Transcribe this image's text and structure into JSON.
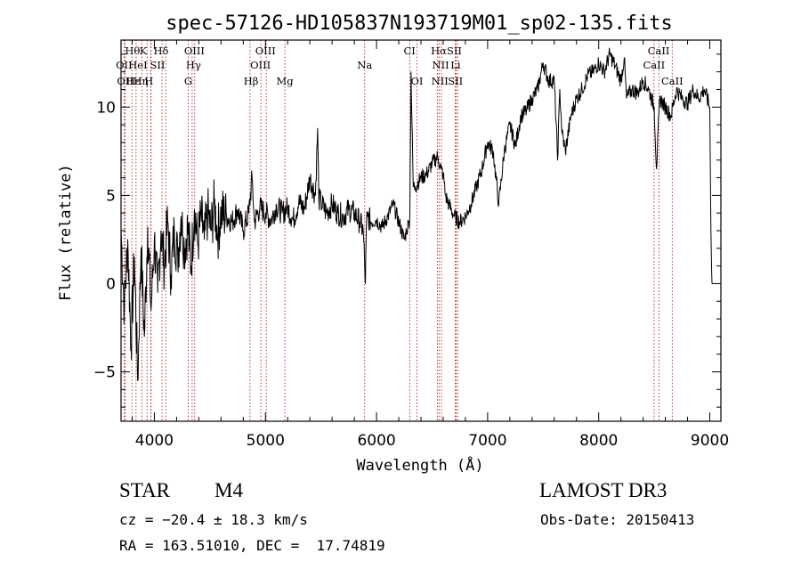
{
  "chart_data": {
    "type": "line",
    "title": "spec-57126-HD105837N193719M01_sp02-135.fits",
    "xlabel": "Wavelength (Å)",
    "ylabel": "Flux (relative)",
    "xlim": [
      3700,
      9100
    ],
    "ylim": [
      -7.8,
      13.8
    ],
    "xticks": [
      4000,
      5000,
      6000,
      7000,
      8000,
      9000
    ],
    "yticks": [
      -5,
      0,
      5,
      10
    ],
    "grid": false,
    "series": [
      {
        "name": "spectrum",
        "x": [
          3700,
          3730,
          3760,
          3790,
          3820,
          3850,
          3880,
          3910,
          3940,
          3970,
          4000,
          4030,
          4060,
          4090,
          4120,
          4150,
          4180,
          4210,
          4240,
          4270,
          4300,
          4330,
          4360,
          4390,
          4420,
          4450,
          4480,
          4510,
          4540,
          4570,
          4600,
          4650,
          4700,
          4750,
          4800,
          4850,
          4880,
          4900,
          4950,
          5000,
          5050,
          5100,
          5150,
          5200,
          5250,
          5300,
          5350,
          5400,
          5450,
          5470,
          5480,
          5500,
          5550,
          5600,
          5650,
          5700,
          5750,
          5800,
          5850,
          5880,
          5900,
          5910,
          5920,
          5950,
          6000,
          6050,
          6100,
          6150,
          6200,
          6250,
          6270,
          6290,
          6300,
          6310,
          6330,
          6350,
          6400,
          6450,
          6500,
          6550,
          6580,
          6600,
          6620,
          6650,
          6700,
          6750,
          6800,
          6850,
          6900,
          6950,
          7000,
          7050,
          7100,
          7150,
          7200,
          7250,
          7300,
          7350,
          7400,
          7450,
          7500,
          7550,
          7600,
          7630,
          7650,
          7670,
          7700,
          7750,
          7800,
          7850,
          7900,
          7950,
          8000,
          8050,
          8100,
          8150,
          8200,
          8230,
          8250,
          8300,
          8350,
          8400,
          8450,
          8500,
          8520,
          8550,
          8600,
          8650,
          8700,
          8750,
          8800,
          8850,
          8900,
          8950,
          9000,
          9010,
          9020
        ],
        "y": [
          3.0,
          -1.5,
          2.5,
          -3.5,
          1.5,
          -5.5,
          2.0,
          -3.0,
          3.2,
          -1.5,
          2.5,
          -0.5,
          3.0,
          1.0,
          3.5,
          0.5,
          3.0,
          1.5,
          3.8,
          2.0,
          3.2,
          1.0,
          4.2,
          2.2,
          3.8,
          2.5,
          4.0,
          3.0,
          4.5,
          2.8,
          4.0,
          3.8,
          3.5,
          4.2,
          3.0,
          4.0,
          6.0,
          3.5,
          4.3,
          4.0,
          3.6,
          4.4,
          4.0,
          4.3,
          3.6,
          4.6,
          4.2,
          6.0,
          5.0,
          8.8,
          4.8,
          4.6,
          4.0,
          4.5,
          4.0,
          3.8,
          4.2,
          4.0,
          3.5,
          3.0,
          0.0,
          3.5,
          3.8,
          3.5,
          3.6,
          3.2,
          3.8,
          4.5,
          3.5,
          2.5,
          3.0,
          3.5,
          3.8,
          12.0,
          5.5,
          5.5,
          6.0,
          6.2,
          6.8,
          7.2,
          6.5,
          6.2,
          5.0,
          4.5,
          3.8,
          3.5,
          3.8,
          4.5,
          5.5,
          6.5,
          8.0,
          7.5,
          4.5,
          7.5,
          9.0,
          7.8,
          9.5,
          9.8,
          10.5,
          11.0,
          12.5,
          11.5,
          11.5,
          7.0,
          11.0,
          8.5,
          7.5,
          9.5,
          10.5,
          11.0,
          11.8,
          12.0,
          12.5,
          12.0,
          13.0,
          12.3,
          11.5,
          12.8,
          10.5,
          11.0,
          10.8,
          11.5,
          11.0,
          10.0,
          6.5,
          10.5,
          10.0,
          9.5,
          11.0,
          10.5,
          10.2,
          11.0,
          10.5,
          11.0,
          10.0,
          3.0,
          0.0
        ]
      }
    ],
    "line_markers": [
      {
        "label": "Hθ",
        "x": 3798,
        "row": 1,
        "lx": 3803
      },
      {
        "label": "K",
        "x": 3934,
        "row": 1,
        "lx": 3900
      },
      {
        "label": "Hδ",
        "x": 4102,
        "row": 1,
        "lx": 4060
      },
      {
        "label": "OIII",
        "x": 4363,
        "row": 1,
        "lx": 4360
      },
      {
        "label": "OIII",
        "x": 5007,
        "row": 1,
        "lx": 5000
      },
      {
        "label": "CI",
        "x": 6300,
        "row": 1,
        "lx": 6297
      },
      {
        "label": "Hα",
        "x": 6563,
        "row": 1,
        "lx": 6560
      },
      {
        "label": "SII",
        "x": 6717,
        "row": 1,
        "lx": 6700
      },
      {
        "label": "CaII",
        "x": 8542,
        "row": 1,
        "lx": 8540
      },
      {
        "label": "OII",
        "x": 3727,
        "row": 2,
        "lx": 3727
      },
      {
        "label": "HeI",
        "x": 3889,
        "row": 2,
        "lx": 3852
      },
      {
        "label": "SII",
        "x": 4069,
        "row": 2,
        "lx": 4028
      },
      {
        "label": "Hγ",
        "x": 4340,
        "row": 2,
        "lx": 4352
      },
      {
        "label": "OIII",
        "x": 4959,
        "row": 2,
        "lx": 4955
      },
      {
        "label": "Na",
        "x": 5893,
        "row": 2,
        "lx": 5893
      },
      {
        "label": "NII",
        "x": 6584,
        "row": 2,
        "lx": 6577
      },
      {
        "label": "Li",
        "x": 6708,
        "row": 2,
        "lx": 6712
      },
      {
        "label": "CaII",
        "x": 8498,
        "row": 2,
        "lx": 8498
      },
      {
        "label": "OII",
        "x": 3737,
        "row": 3,
        "lx": 3737
      },
      {
        "label": "Hε",
        "x": 3970,
        "row": 3,
        "lx": 3810
      },
      {
        "label": "Hη",
        "x": 3835,
        "row": 3,
        "lx": 3877
      },
      {
        "label": "H",
        "x": 3968,
        "row": 3,
        "lx": 3950
      },
      {
        "label": "G",
        "x": 4305,
        "row": 3,
        "lx": 4305
      },
      {
        "label": "Hβ",
        "x": 4861,
        "row": 3,
        "lx": 4870
      },
      {
        "label": "Mg",
        "x": 5175,
        "row": 3,
        "lx": 5175
      },
      {
        "label": "OI",
        "x": 6364,
        "row": 3,
        "lx": 6364
      },
      {
        "label": "NII",
        "x": 6548,
        "row": 3,
        "lx": 6570
      },
      {
        "label": "SII",
        "x": 6731,
        "row": 3,
        "lx": 6710
      },
      {
        "label": "CaII",
        "x": 8662,
        "row": 3,
        "lx": 8662
      }
    ]
  },
  "info": {
    "class": "STAR",
    "subclass": "M4",
    "survey": "LAMOST DR3",
    "cz": "cz = −20.4 ± 18.3 km/s",
    "obs_date": "Obs-Date: 20150413",
    "coords": "RA = 163.51010, DEC =  17.74819"
  },
  "colors": {
    "line": "#000000",
    "marker": "#b22222"
  }
}
